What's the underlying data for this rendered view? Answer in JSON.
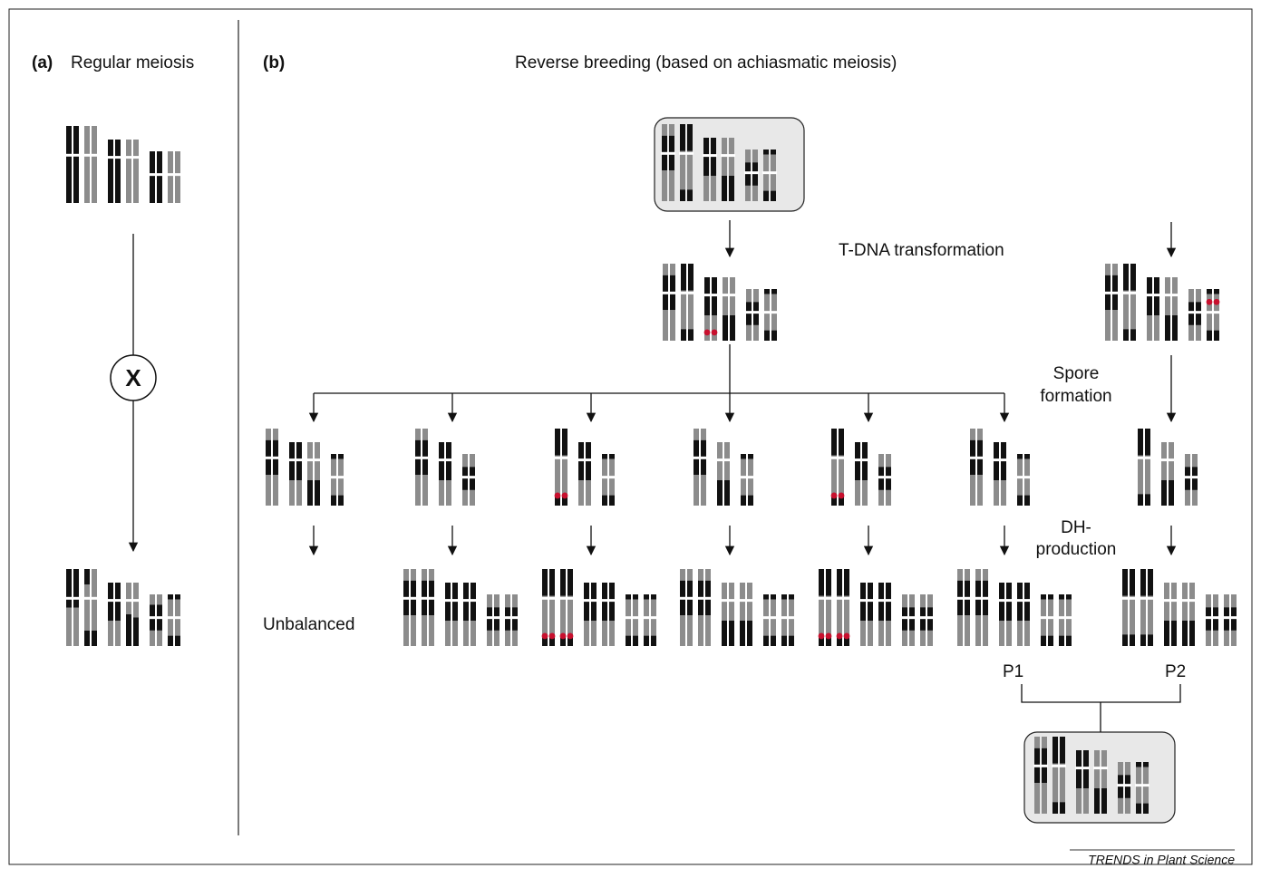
{
  "panel_a": {
    "label": "(a)",
    "title": "Regular meiosis",
    "crossover": "X"
  },
  "panel_b": {
    "label": "(b)",
    "title": "Reverse breeding (based on achiasmatic meiosis)",
    "transformation": "T-DNA transformation",
    "spore_formation": [
      "Spore",
      "formation"
    ],
    "dh_production": [
      "DH-",
      "production"
    ],
    "outcome": "Unbalanced",
    "parents": [
      "P1",
      "P2"
    ]
  },
  "source": "TRENDS in Plant Science"
}
